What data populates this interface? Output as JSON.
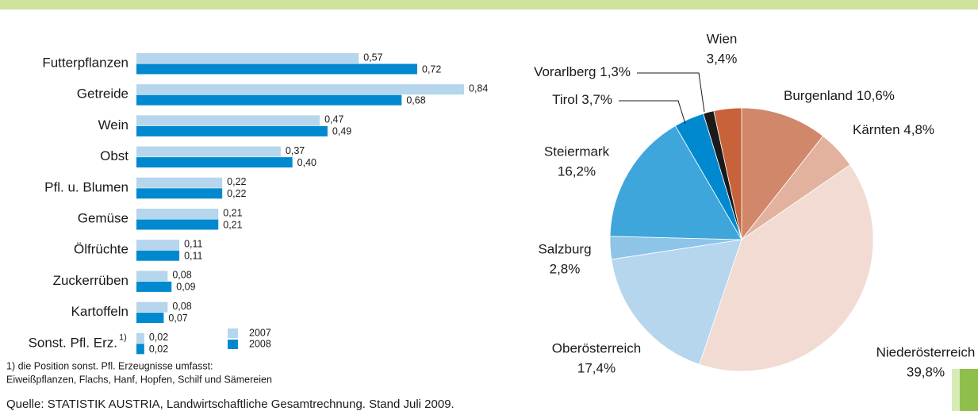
{
  "chart_data": [
    {
      "type": "bar",
      "orientation": "horizontal",
      "categories": [
        "Futterpflanzen",
        "Getreide",
        "Wein",
        "Obst",
        "Pfl. u. Blumen",
        "Gemüse",
        "Ölfrüchte",
        "Zuckerrüben",
        "Kartoffeln",
        "Sonst. Pfl. Erz."
      ],
      "footnote_mark": "1)",
      "series": [
        {
          "name": "2007",
          "color": "#b5d6ec",
          "values": [
            0.57,
            0.84,
            0.47,
            0.37,
            0.22,
            0.21,
            0.11,
            0.08,
            0.08,
            0.02
          ],
          "value_labels": [
            "0,57",
            "0,84",
            "0,47",
            "0,37",
            "0,22",
            "0,21",
            "0,11",
            "0,08",
            "0,08",
            "0,02"
          ]
        },
        {
          "name": "2008",
          "color": "#0089cf",
          "values": [
            0.72,
            0.68,
            0.49,
            0.4,
            0.22,
            0.21,
            0.11,
            0.09,
            0.07,
            0.02
          ],
          "value_labels": [
            "0,72",
            "0,68",
            "0,49",
            "0,40",
            "0,22",
            "0,21",
            "0,11",
            "0,09",
            "0,07",
            "0,02"
          ]
        }
      ],
      "footnote": [
        "1) die Position sonst. Pfl. Erzeugnisse umfasst:",
        "Eiweißpflanzen, Flachs, Hanf, Hopfen, Schilf und Sämereien"
      ],
      "source": "Quelle: STATISTIK AUSTRIA, Landwirtschaftliche Gesamtrechnung. Stand Juli 2009."
    },
    {
      "type": "pie",
      "categories": [
        "Burgenland",
        "Kärnten",
        "Niederösterreich",
        "Oberösterreich",
        "Salzburg",
        "Steiermark",
        "Tirol",
        "Vorarlberg",
        "Wien"
      ],
      "values": [
        10.6,
        4.8,
        39.8,
        17.4,
        2.8,
        16.2,
        3.7,
        1.3,
        3.4
      ],
      "value_labels": [
        "10,6%",
        "4,8%",
        "39,8%",
        "17,4%",
        "2,8%",
        "16,2%",
        "3,7%",
        "1,3%",
        "3,4%"
      ],
      "colors": [
        "#d0876a",
        "#e3b29f",
        "#f1dbd2",
        "#b5d6ec",
        "#8ec4e8",
        "#3fa6dc",
        "#0089cf",
        "#1a1a1a",
        "#c8623a"
      ]
    }
  ]
}
